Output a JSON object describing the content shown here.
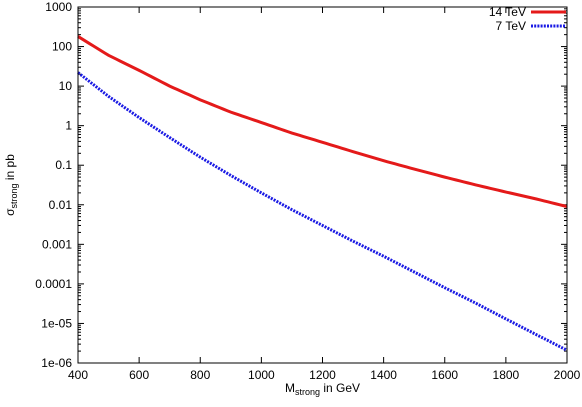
{
  "chart_data": {
    "type": "line",
    "title": "",
    "xlabel": {
      "main": "M",
      "sub": "strong",
      "rest": " in GeV"
    },
    "ylabel": {
      "main": "σ",
      "sub": "strong",
      "rest": " in pb"
    },
    "x_scale": "linear",
    "y_scale": "log",
    "xlim": [
      400,
      2000
    ],
    "ylim": [
      1e-06,
      1000
    ],
    "x_ticks": [
      400,
      600,
      800,
      1000,
      1200,
      1400,
      1600,
      1800,
      2000
    ],
    "x_tick_labels": [
      "400",
      "600",
      "800",
      "1000",
      "1200",
      "1400",
      "1600",
      "1800",
      "2000"
    ],
    "y_ticks": [
      1e-06,
      1e-05,
      0.0001,
      0.001,
      0.01,
      0.1,
      1,
      10,
      100,
      1000
    ],
    "y_tick_labels": [
      "1e-06",
      "1e-05",
      "0.0001",
      "0.001",
      "0.01",
      "0.1",
      "1",
      "10",
      "100",
      "1000"
    ],
    "grid": false,
    "legend_position": "top-right",
    "series": [
      {
        "name": "14 TeV",
        "color": "#e41a1a",
        "style": "solid",
        "x": [
          400,
          500,
          600,
          700,
          800,
          900,
          1000,
          1100,
          1200,
          1300,
          1400,
          1500,
          1600,
          1700,
          1800,
          1900,
          2000
        ],
        "y": [
          180,
          60,
          25,
          10,
          4.5,
          2.2,
          1.2,
          0.65,
          0.38,
          0.22,
          0.13,
          0.08,
          0.05,
          0.032,
          0.021,
          0.014,
          0.009
        ]
      },
      {
        "name": "7 TeV",
        "color": "#1a1ae4",
        "style": "dotted",
        "x": [
          400,
          500,
          600,
          700,
          800,
          900,
          1000,
          1100,
          1200,
          1300,
          1400,
          1500,
          1600,
          1700,
          1800,
          1900,
          2000
        ],
        "y": [
          22,
          5.5,
          1.6,
          0.5,
          0.16,
          0.055,
          0.02,
          0.0075,
          0.003,
          0.0012,
          0.0005,
          0.0002,
          8e-05,
          3.3e-05,
          1.3e-05,
          5.2e-06,
          2.1e-06
        ]
      }
    ]
  }
}
